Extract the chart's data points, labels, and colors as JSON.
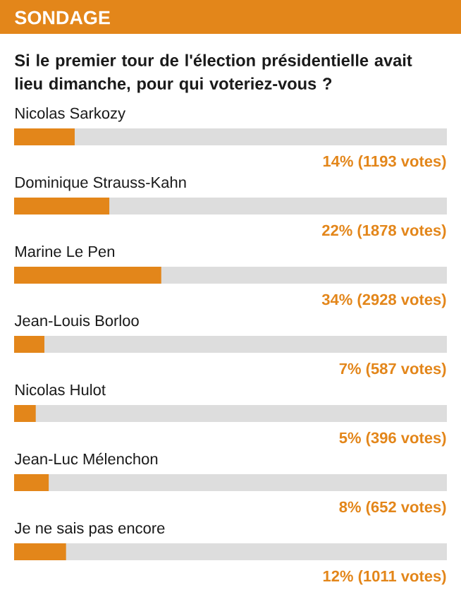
{
  "chart_data": {
    "type": "bar",
    "orientation": "horizontal",
    "title": "SONDAGE",
    "subtitle": "Si le premier tour de l'élection présidentielle avait lieu dimanche, pour qui voteriez-vous ?",
    "categories": [
      "Nicolas Sarkozy",
      "Dominique Strauss-Kahn",
      "Marine Le Pen",
      "Jean-Louis Borloo",
      "Nicolas Hulot",
      "Jean-Luc Mélenchon",
      "Je ne sais pas encore"
    ],
    "values": [
      14,
      22,
      34,
      7,
      5,
      8,
      12
    ],
    "value_labels": [
      "14% (1193 votes)",
      "22% (1878 votes)",
      "34% (2928 votes)",
      "7% (587 votes)",
      "5% (396 votes)",
      "8% (652 votes)",
      "12% (1011 votes)"
    ],
    "color": "#e3861a",
    "xlim": [
      0,
      100
    ]
  }
}
